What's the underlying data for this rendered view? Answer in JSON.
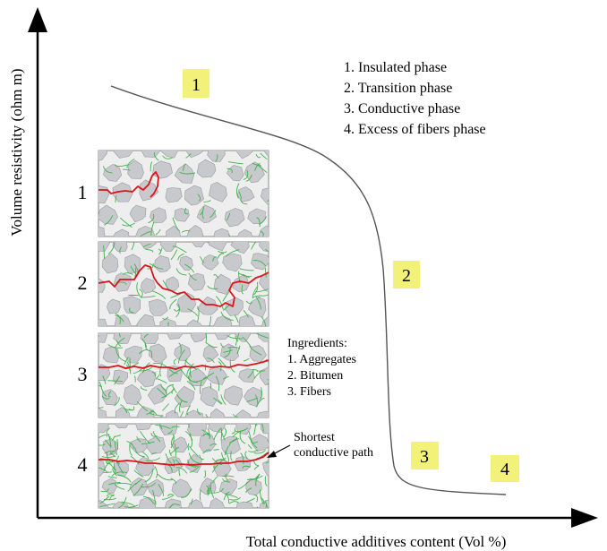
{
  "axes": {
    "xlabel": "Total conductive additives content (Vol %)",
    "ylabel": "Volume resistivity (ohm m)"
  },
  "phase_markers": [
    "1",
    "2",
    "3",
    "4"
  ],
  "phase_legend": [
    "1. Insulated phase",
    "2. Transition phase",
    "3. Conductive phase",
    "4. Excess of fibers phase"
  ],
  "panels": [
    {
      "number": "1",
      "fiber_level": 1,
      "path": "partial"
    },
    {
      "number": "2",
      "fiber_level": 2,
      "path": "tortuous"
    },
    {
      "number": "3",
      "fiber_level": 3,
      "path": "complete"
    },
    {
      "number": "4",
      "fiber_level": 4,
      "path": "complete"
    }
  ],
  "ingredients": {
    "title": "Ingredients:",
    "items": [
      "1. Aggregates",
      "2. Bitumen",
      "3. Fibers"
    ]
  },
  "path_note": [
    "Shortest",
    "conductive path"
  ],
  "colors": {
    "axis": "#000000",
    "curve": "#555555",
    "marker_fill": "#f2f27a",
    "panel_bg": "#eeeeee",
    "aggregate": "#c8c9cd",
    "fiber": "#3db34a",
    "path": "#d9141b"
  }
}
